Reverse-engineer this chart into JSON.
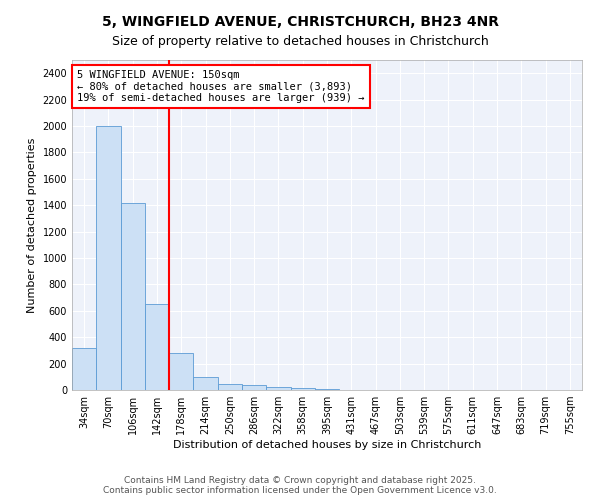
{
  "title_line1": "5, WINGFIELD AVENUE, CHRISTCHURCH, BH23 4NR",
  "title_line2": "Size of property relative to detached houses in Christchurch",
  "xlabel": "Distribution of detached houses by size in Christchurch",
  "ylabel": "Number of detached properties",
  "bin_labels": [
    "34sqm",
    "70sqm",
    "106sqm",
    "142sqm",
    "178sqm",
    "214sqm",
    "250sqm",
    "286sqm",
    "322sqm",
    "358sqm",
    "395sqm",
    "431sqm",
    "467sqm",
    "503sqm",
    "539sqm",
    "575sqm",
    "611sqm",
    "647sqm",
    "683sqm",
    "719sqm",
    "755sqm"
  ],
  "bar_values": [
    320,
    2000,
    1420,
    650,
    280,
    95,
    45,
    38,
    25,
    18,
    5,
    0,
    0,
    0,
    0,
    0,
    0,
    0,
    0,
    0,
    0
  ],
  "bar_color": "#cce0f5",
  "bar_edge_color": "#5b9bd5",
  "red_line_x": 3.5,
  "annotation_title": "5 WINGFIELD AVENUE: 150sqm",
  "annotation_line1": "← 80% of detached houses are smaller (3,893)",
  "annotation_line2": "19% of semi-detached houses are larger (939) →",
  "ylim": [
    0,
    2500
  ],
  "yticks": [
    0,
    200,
    400,
    600,
    800,
    1000,
    1200,
    1400,
    1600,
    1800,
    2000,
    2200,
    2400
  ],
  "footer_line1": "Contains HM Land Registry data © Crown copyright and database right 2025.",
  "footer_line2": "Contains public sector information licensed under the Open Government Licence v3.0.",
  "background_color": "#e8eef8",
  "plot_bg_color": "#eef2fa",
  "grid_color": "#ffffff",
  "title_fontsize": 10,
  "subtitle_fontsize": 9,
  "axis_label_fontsize": 8,
  "tick_fontsize": 7,
  "annotation_fontsize": 7.5,
  "footer_fontsize": 6.5
}
